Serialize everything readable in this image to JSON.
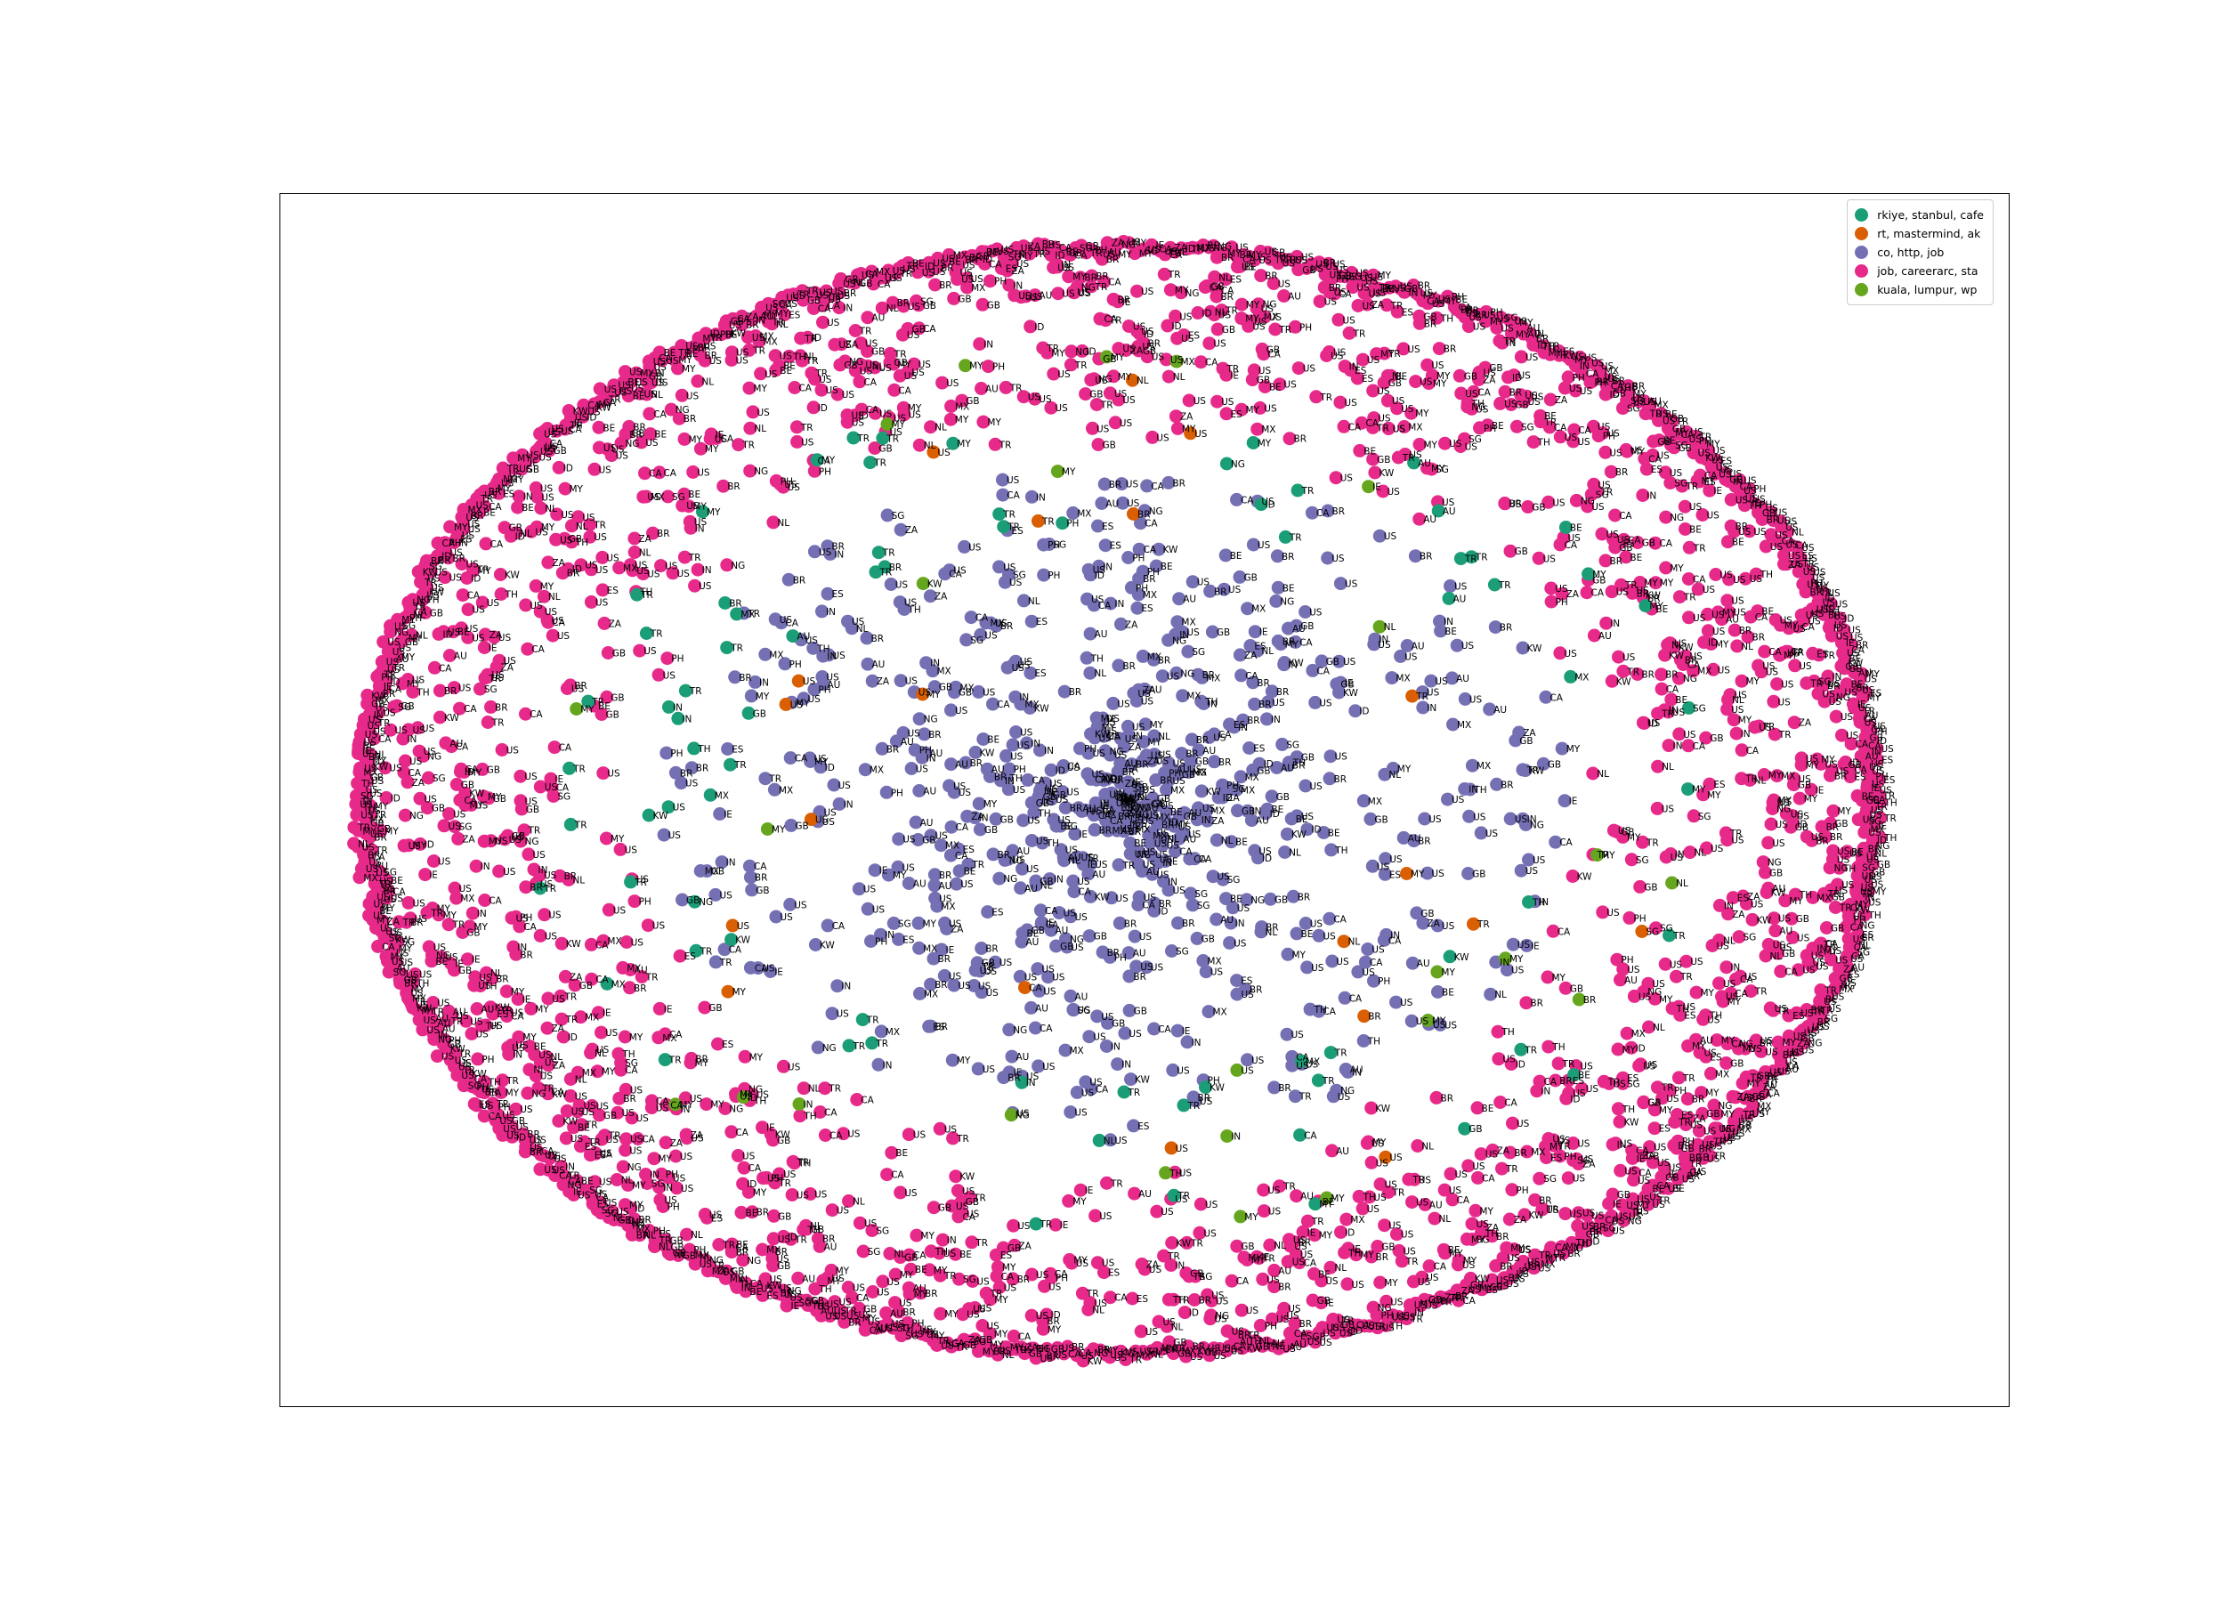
{
  "chart_data": {
    "type": "scatter",
    "layout_style": "network-graph",
    "title": "",
    "xlabel": "",
    "ylabel": "",
    "axes_ticks_visible": false,
    "grid": false,
    "legend_placement": "top-right",
    "node_label_vocabulary": [
      "US",
      "TR",
      "MY",
      "GB",
      "CA",
      "BR",
      "IN",
      "MX",
      "ID",
      "AU",
      "TH",
      "PH",
      "NG",
      "SG",
      "KW",
      "NL",
      "BE",
      "IE",
      "ES",
      "ZA"
    ],
    "series": [
      {
        "name": "rkiye, stanbul, cafe",
        "color": "#1b9e77",
        "node_count": 75,
        "labels": [
          "TR",
          "TR",
          "TR",
          "TR",
          "TR",
          "TR",
          "TR",
          "TR",
          "TR",
          "TR"
        ]
      },
      {
        "name": "rt, mastermind, ak",
        "color": "#d95f02",
        "node_count": 20,
        "labels": [
          "US",
          "US",
          "TR",
          "US",
          "US",
          "US",
          "TR",
          "US",
          "US",
          "US"
        ]
      },
      {
        "name": "co, http, job",
        "color": "#7570b3",
        "node_count": 700,
        "labels": [
          "US",
          "US",
          "GB",
          "CA",
          "IN",
          "US",
          "MX",
          "US",
          "BR",
          "US",
          "AU",
          "US"
        ]
      },
      {
        "name": "job, careerarc, sta",
        "color": "#e7298a",
        "node_count": 2300,
        "labels": [
          "US",
          "US",
          "US",
          "GB",
          "TR",
          "US",
          "CA",
          "US",
          "MY",
          "US",
          "BR",
          "US"
        ]
      },
      {
        "name": "kuala, lumpur, wp",
        "color": "#66a61e",
        "node_count": 25,
        "labels": [
          "MY",
          "MY",
          "MY",
          "MY",
          "MY"
        ]
      }
    ]
  }
}
